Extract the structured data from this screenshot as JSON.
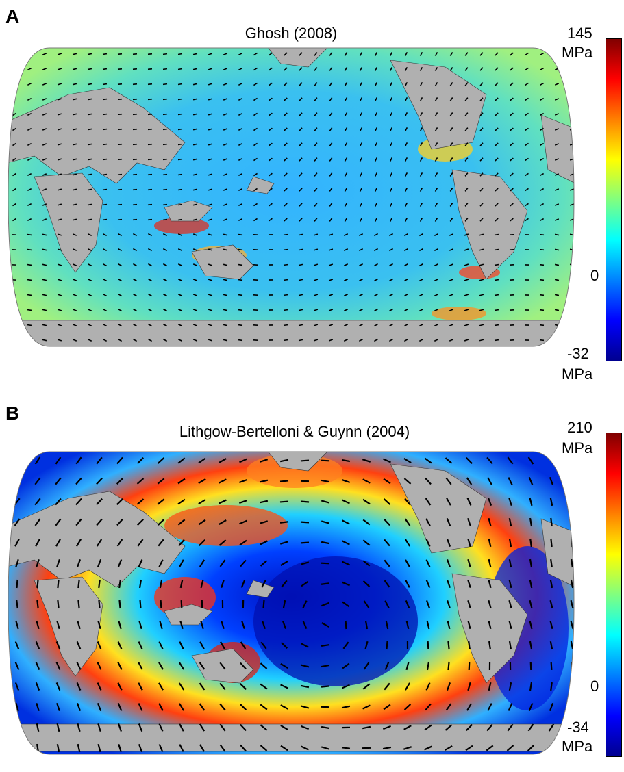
{
  "panels": [
    {
      "letter": "A",
      "title": "Ghosh (2008)",
      "colorbar": {
        "max": "145",
        "max_unit": "MPa",
        "zero": "0",
        "min": "-32",
        "min_unit": "MPa"
      },
      "style": "ghosh"
    },
    {
      "letter": "B",
      "title": "Lithgow-Bertelloni & Guynn (2004)",
      "colorbar": {
        "max": "210",
        "max_unit": "MPa",
        "zero": "0",
        "min": "-34",
        "min_unit": "MPa"
      },
      "style": "lbg"
    }
  ],
  "colors": {
    "land": "#b0b0b0",
    "colormap": [
      "#00008f",
      "#0000ff",
      "#0080ff",
      "#00ffff",
      "#80ff80",
      "#ffff00",
      "#ff8000",
      "#ff0000",
      "#800000"
    ]
  }
}
